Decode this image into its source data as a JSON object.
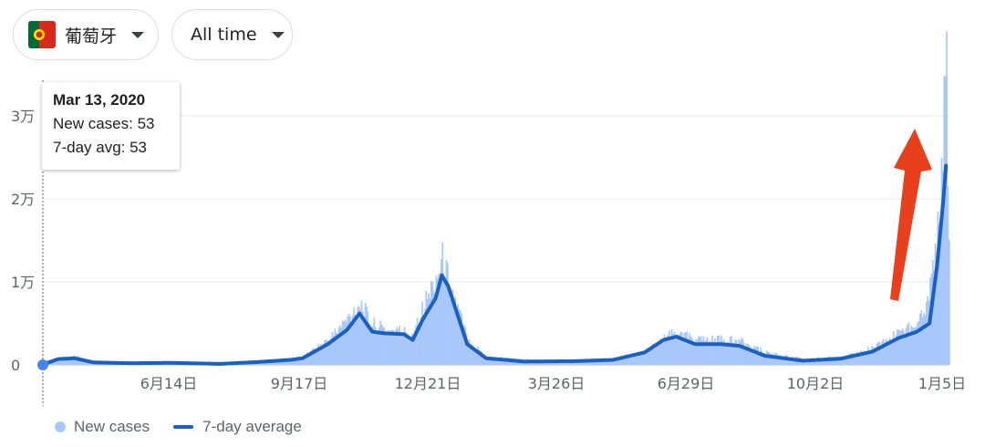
{
  "filters": {
    "country": {
      "label": "葡萄牙",
      "flag_colors": [
        "#046a38",
        "#da291c",
        "#ffe900"
      ]
    },
    "range": {
      "label": "All time"
    }
  },
  "tooltip": {
    "date": "Mar 13, 2020",
    "new_cases_label": "New cases: 53",
    "avg_label": "7-day avg: 53"
  },
  "legend": {
    "new_cases": "New cases",
    "avg": "7-day average"
  },
  "colors": {
    "bars": "#a8c7fa",
    "avg_line": "#1a5fc2",
    "arrow": "#e8401c",
    "grid": "#e8eaed"
  },
  "chart_data": {
    "type": "bar",
    "title": "",
    "x_tick_labels": [
      "6月14日",
      "9月17日",
      "12月21日",
      "3月26日",
      "6月29日",
      "10月2日",
      "1月5日"
    ],
    "y_tick_labels": [
      "0",
      "1万",
      "2万",
      "3万"
    ],
    "ylim": [
      0,
      34000
    ],
    "grid": true,
    "legend_position": "bottom-left",
    "series": [
      {
        "name": "New cases",
        "kind": "bars",
        "keyframes": [
          [
            0,
            53
          ],
          [
            12,
            800
          ],
          [
            25,
            1000
          ],
          [
            40,
            300
          ],
          [
            70,
            200
          ],
          [
            100,
            300
          ],
          [
            140,
            150
          ],
          [
            170,
            400
          ],
          [
            190,
            700
          ],
          [
            205,
            1000
          ],
          [
            225,
            3000
          ],
          [
            240,
            5500
          ],
          [
            250,
            7500
          ],
          [
            258,
            5000
          ],
          [
            270,
            4200
          ],
          [
            285,
            4000
          ],
          [
            290,
            3500
          ],
          [
            300,
            7000
          ],
          [
            310,
            10500
          ],
          [
            315,
            12500
          ],
          [
            320,
            10000
          ],
          [
            335,
            3000
          ],
          [
            350,
            1000
          ],
          [
            380,
            600
          ],
          [
            420,
            500
          ],
          [
            450,
            700
          ],
          [
            475,
            1500
          ],
          [
            490,
            3300
          ],
          [
            500,
            3800
          ],
          [
            515,
            3000
          ],
          [
            535,
            3000
          ],
          [
            550,
            2800
          ],
          [
            570,
            1500
          ],
          [
            600,
            700
          ],
          [
            630,
            900
          ],
          [
            655,
            2000
          ],
          [
            675,
            3800
          ],
          [
            690,
            5000
          ],
          [
            700,
            9000
          ],
          [
            706,
            16000
          ],
          [
            711,
            30000
          ],
          [
            713,
            34000
          ],
          [
            715,
            15000
          ]
        ]
      },
      {
        "name": "7-day average",
        "kind": "line",
        "keyframes": [
          [
            0,
            53
          ],
          [
            12,
            700
          ],
          [
            25,
            800
          ],
          [
            40,
            300
          ],
          [
            70,
            200
          ],
          [
            100,
            250
          ],
          [
            140,
            120
          ],
          [
            170,
            350
          ],
          [
            195,
            600
          ],
          [
            205,
            800
          ],
          [
            225,
            2500
          ],
          [
            240,
            4200
          ],
          [
            250,
            6200
          ],
          [
            260,
            4000
          ],
          [
            270,
            3800
          ],
          [
            285,
            3700
          ],
          [
            292,
            3000
          ],
          [
            300,
            5500
          ],
          [
            310,
            8000
          ],
          [
            315,
            10800
          ],
          [
            320,
            9500
          ],
          [
            335,
            2500
          ],
          [
            350,
            800
          ],
          [
            380,
            400
          ],
          [
            420,
            450
          ],
          [
            450,
            600
          ],
          [
            475,
            1500
          ],
          [
            490,
            3000
          ],
          [
            500,
            3400
          ],
          [
            515,
            2500
          ],
          [
            535,
            2500
          ],
          [
            550,
            2300
          ],
          [
            570,
            1100
          ],
          [
            600,
            500
          ],
          [
            630,
            750
          ],
          [
            655,
            1600
          ],
          [
            675,
            3200
          ],
          [
            690,
            4000
          ],
          [
            700,
            5000
          ],
          [
            706,
            12000
          ],
          [
            711,
            20000
          ],
          [
            713,
            24000
          ]
        ]
      }
    ]
  }
}
